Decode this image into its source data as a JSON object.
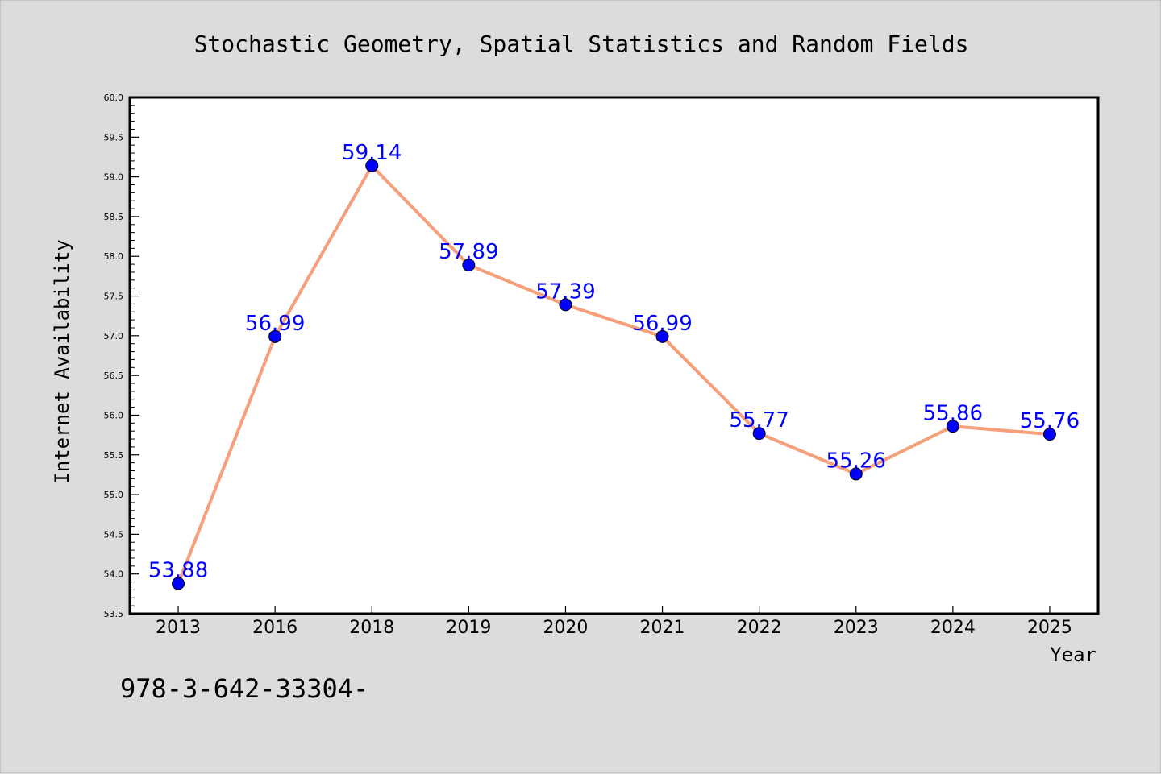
{
  "chart_data": {
    "type": "line",
    "title": "Stochastic Geometry, Spatial Statistics and Random Fields",
    "xlabel": "Year",
    "ylabel": "Internet Availability",
    "categories": [
      "2013",
      "2016",
      "2018",
      "2019",
      "2020",
      "2021",
      "2022",
      "2023",
      "2024",
      "2025"
    ],
    "series": [
      {
        "values": [
          53.88,
          56.99,
          59.14,
          57.89,
          57.39,
          56.99,
          55.77,
          55.26,
          55.86,
          55.76
        ],
        "data_labels": [
          "53.88",
          "56.99",
          "59.14",
          "57.89",
          "57.39",
          "56.99",
          "55.77",
          "55.26",
          "55.86",
          "55.76"
        ]
      }
    ],
    "ylim": [
      53.5,
      60.0
    ],
    "yticks": [
      "53.5",
      "54.0",
      "54.5",
      "55.0",
      "55.5",
      "56.0",
      "56.5",
      "57.0",
      "57.5",
      "58.0",
      "58.5",
      "59.0",
      "59.5",
      "60.0"
    ],
    "grid": false,
    "colors": {
      "line": "#f5a07a",
      "marker": "#0000ff",
      "data_label": "#0000ff",
      "background": "#dcdcdc",
      "plot_area": "#ffffff"
    }
  },
  "footer_text": "978-3-642-33304-"
}
